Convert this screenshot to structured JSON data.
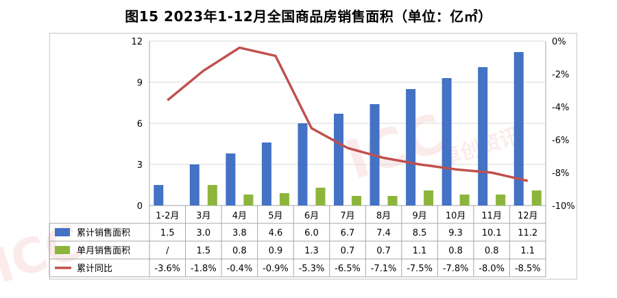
{
  "title": "图15  2023年1-12月全国商品房销售面积（单位：亿㎡）",
  "watermark": {
    "mark": "ICC",
    "cn": "卓创资讯",
    "color": "#dd3c3c"
  },
  "colors": {
    "cumulative_bar": "#4472C4",
    "monthly_bar": "#8DB53C",
    "yoy_line": "#C0504D",
    "grid": "#d9d9d9",
    "axis": "#a6a6a6"
  },
  "chart_data": {
    "type": "bar",
    "categories": [
      "1-2月",
      "3月",
      "4月",
      "5月",
      "6月",
      "7月",
      "8月",
      "9月",
      "10月",
      "11月",
      "12月"
    ],
    "series": [
      {
        "name": "累计销售面积",
        "type": "bar",
        "axis": "left",
        "values": [
          1.5,
          3.0,
          3.8,
          4.6,
          6.0,
          6.7,
          7.4,
          8.5,
          9.3,
          10.1,
          11.2
        ],
        "labels": [
          "1.5",
          "3.0",
          "3.8",
          "4.6",
          "6.0",
          "6.7",
          "7.4",
          "8.5",
          "9.3",
          "10.1",
          "11.2"
        ]
      },
      {
        "name": "单月销售面积",
        "type": "bar",
        "axis": "left",
        "values": [
          null,
          1.5,
          0.8,
          0.9,
          1.3,
          0.7,
          0.7,
          1.1,
          0.8,
          0.8,
          1.1
        ],
        "labels": [
          "/",
          "1.5",
          "0.8",
          "0.9",
          "1.3",
          "0.7",
          "0.7",
          "1.1",
          "0.8",
          "0.8",
          "1.1"
        ]
      },
      {
        "name": "累计同比",
        "type": "line",
        "axis": "right",
        "values": [
          -3.6,
          -1.8,
          -0.4,
          -0.9,
          -5.3,
          -6.5,
          -7.1,
          -7.5,
          -7.8,
          -8.0,
          -8.5
        ],
        "labels": [
          "-3.6%",
          "-1.8%",
          "-0.4%",
          "-0.9%",
          "-5.3%",
          "-6.5%",
          "-7.1%",
          "-7.5%",
          "-7.8%",
          "-8.0%",
          "-8.5%"
        ]
      }
    ],
    "y_left": {
      "ylim": [
        0,
        12
      ],
      "ticks": [
        0,
        3,
        6,
        9,
        12
      ],
      "tick_labels": [
        "0",
        "3",
        "6",
        "9",
        "12"
      ]
    },
    "y_right": {
      "ylim": [
        -10,
        0
      ],
      "ticks": [
        0,
        -2,
        -4,
        -6,
        -8,
        -10
      ],
      "tick_labels": [
        "0%",
        "-2%",
        "-4%",
        "-6%",
        "-8%",
        "-10%"
      ]
    },
    "grid": "horizontal",
    "legend": "data-table"
  }
}
